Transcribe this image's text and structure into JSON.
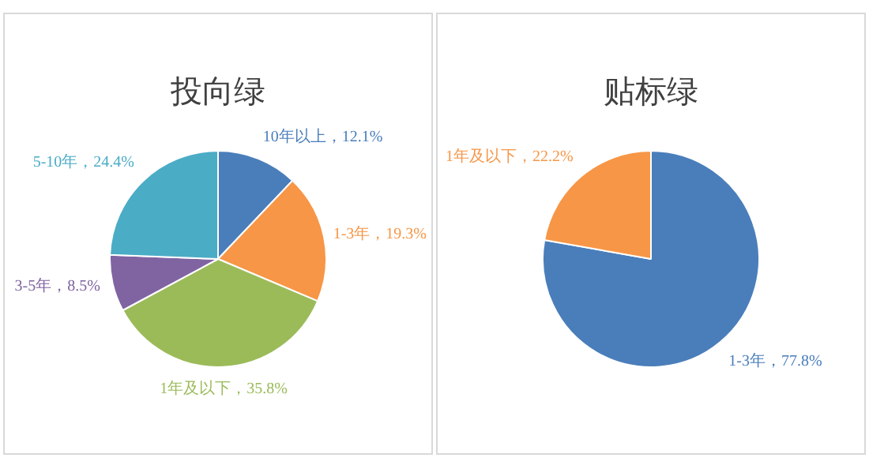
{
  "chart_data": [
    {
      "type": "pie",
      "title": "投向绿",
      "categories": [
        "10年以上",
        "1-3年",
        "1年及以下",
        "3-5年",
        "5-10年"
      ],
      "values": [
        12.1,
        19.3,
        35.8,
        8.5,
        24.4
      ],
      "value_labels": [
        "12.1%",
        "19.3%",
        "35.8%",
        "8.5%",
        "24.4%"
      ],
      "colors": [
        "#4a7ebb",
        "#f79646",
        "#9bbb59",
        "#8064a2",
        "#4bacc6"
      ]
    },
    {
      "type": "pie",
      "title": "贴标绿",
      "categories": [
        "1-3年",
        "1年及以下"
      ],
      "values": [
        77.8,
        22.2
      ],
      "value_labels": [
        "77.8%",
        "22.2%"
      ],
      "colors": [
        "#4a7ebb",
        "#f79646"
      ]
    }
  ]
}
